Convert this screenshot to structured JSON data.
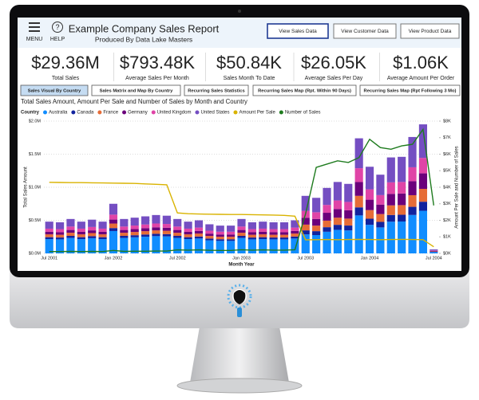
{
  "header": {
    "menu_label": "MENU",
    "help_icon": "?",
    "help_label": "HELP",
    "title": "Example Company Sales Report",
    "subtitle": "Produced By Data Lake Masters"
  },
  "nav_buttons": [
    "View Sales Data",
    "View Customer Data",
    "View Product Data"
  ],
  "kpis": [
    {
      "value": "$29.36M",
      "label": "Total Sales"
    },
    {
      "value": "$793.48K",
      "label": "Average Sales Per Month"
    },
    {
      "value": "$50.84K",
      "label": "Sales Month To Date"
    },
    {
      "value": "$26.05K",
      "label": "Average Sales Per Day"
    },
    {
      "value": "$1.06K",
      "label": "Average Amount Per Order"
    }
  ],
  "tabs": [
    "Sales Visual By Country",
    "Sales Matrix and Map By Country",
    "Recurring Sales Statistics",
    "Recurring Sales Map (Rpt. Within 90 Days)",
    "Recurring Sales Map (Rpt Following 3 Mo)"
  ],
  "chart_data": {
    "type": "bar",
    "title": "Total Sales Amount, Amount Per Sale and Number of Sales by Month and Country",
    "legend_title": "Country",
    "x_label": "Month Year",
    "y_label": "Total Sales Amount",
    "y2_label": "Amount Per Sale and Number of Sales",
    "grid": true,
    "categories": [
      "Jul 2001",
      null,
      null,
      null,
      null,
      null,
      "Jan 2002",
      null,
      null,
      null,
      null,
      null,
      "Jul 2002",
      null,
      null,
      null,
      null,
      null,
      "Jan 2003",
      null,
      null,
      null,
      null,
      null,
      "Jul 2003",
      null,
      null,
      null,
      null,
      null,
      "Jan 2004",
      null,
      null,
      null,
      null,
      null,
      "Jul 2004"
    ],
    "ylim": [
      0,
      2000000
    ],
    "yticks": [
      {
        "value": 0,
        "label": "$0.0M"
      },
      {
        "value": 500000,
        "label": "$0.5M"
      },
      {
        "value": 1000000,
        "label": "$1.0M"
      },
      {
        "value": 1500000,
        "label": "$1.5M"
      },
      {
        "value": 2000000,
        "label": "$2.0M"
      }
    ],
    "y2lim": [
      0,
      8000
    ],
    "y2ticks": [
      {
        "value": 0,
        "label": "$0K"
      },
      {
        "value": 1000,
        "label": "$1K"
      },
      {
        "value": 2000,
        "label": "$2K"
      },
      {
        "value": 3000,
        "label": "$3K"
      },
      {
        "value": 4000,
        "label": "$4K"
      },
      {
        "value": 5000,
        "label": "$5K"
      },
      {
        "value": 6000,
        "label": "$6K"
      },
      {
        "value": 7000,
        "label": "$7K"
      },
      {
        "value": 8000,
        "label": "$8K"
      }
    ],
    "series": [
      {
        "name": "Australia",
        "type": "bar",
        "color": "#118dff",
        "values": [
          216000,
          212000,
          234000,
          216000,
          230000,
          216000,
          338000,
          234000,
          243000,
          252000,
          261000,
          257000,
          234000,
          216000,
          225000,
          198000,
          189000,
          189000,
          234000,
          212000,
          216000,
          212000,
          212000,
          225000,
          287000,
          277000,
          327000,
          356000,
          347000,
          574000,
          432000,
          393000,
          479000,
          482000,
          581000,
          644000,
          20000
        ]
      },
      {
        "name": "Canada",
        "type": "bar",
        "color": "#12239e",
        "values": [
          29000,
          28000,
          31000,
          29000,
          31000,
          29000,
          45000,
          31000,
          32000,
          34000,
          35000,
          34000,
          31000,
          29000,
          30000,
          26000,
          25000,
          25000,
          31000,
          28000,
          29000,
          28000,
          28000,
          30000,
          61000,
          59000,
          69000,
          76000,
          74000,
          122000,
          92000,
          83000,
          102000,
          102000,
          123000,
          137000,
          4000
        ]
      },
      {
        "name": "France",
        "type": "bar",
        "color": "#e66c37",
        "values": [
          43000,
          42000,
          47000,
          43000,
          46000,
          43000,
          68000,
          47000,
          49000,
          50000,
          52000,
          51000,
          47000,
          43000,
          45000,
          40000,
          38000,
          38000,
          47000,
          42000,
          43000,
          42000,
          42000,
          45000,
          87000,
          84000,
          99000,
          108000,
          105000,
          174000,
          131000,
          119000,
          145000,
          146000,
          176000,
          195000,
          6000
        ]
      },
      {
        "name": "Germany",
        "type": "bar",
        "color": "#6b007b",
        "values": [
          38000,
          38000,
          42000,
          38000,
          41000,
          38000,
          60000,
          42000,
          43000,
          45000,
          46000,
          46000,
          42000,
          38000,
          40000,
          35000,
          34000,
          34000,
          42000,
          38000,
          38000,
          38000,
          38000,
          40000,
          104000,
          101000,
          119000,
          130000,
          126000,
          209000,
          157000,
          143000,
          174000,
          175000,
          211000,
          234000,
          7000
        ]
      },
      {
        "name": "United Kingdom",
        "type": "bar",
        "color": "#e044a7",
        "values": [
          48000,
          47000,
          52000,
          48000,
          51000,
          48000,
          75000,
          52000,
          54000,
          56000,
          58000,
          57000,
          52000,
          48000,
          50000,
          44000,
          42000,
          42000,
          52000,
          47000,
          48000,
          47000,
          47000,
          50000,
          104000,
          101000,
          119000,
          130000,
          126000,
          209000,
          157000,
          143000,
          174000,
          175000,
          211000,
          234000,
          7000
        ]
      },
      {
        "name": "United States",
        "type": "bar",
        "color": "#744ec2",
        "values": [
          106000,
          103000,
          114000,
          106000,
          111000,
          106000,
          164000,
          114000,
          119000,
          123000,
          128000,
          125000,
          114000,
          106000,
          110000,
          97000,
          92000,
          92000,
          114000,
          103000,
          106000,
          103000,
          103000,
          110000,
          227000,
          218000,
          257000,
          280000,
          273000,
          452000,
          341000,
          309000,
          377000,
          380000,
          458000,
          507000,
          16000
        ]
      },
      {
        "name": "Amount Per Sale",
        "type": "line",
        "axis": "y2",
        "color": "#d9b300",
        "values": [
          4300,
          4290,
          4280,
          4280,
          4270,
          4260,
          4250,
          4240,
          4230,
          4200,
          4180,
          4150,
          2450,
          2400,
          2380,
          2370,
          2360,
          2350,
          2350,
          2340,
          2330,
          2320,
          2300,
          2250,
          820,
          830,
          840,
          830,
          840,
          850,
          840,
          830,
          840,
          850,
          840,
          830,
          400
        ]
      },
      {
        "name": "Number of Sales",
        "type": "line",
        "axis": "y2",
        "color": "#1e7b1e",
        "values": [
          110,
          110,
          120,
          110,
          120,
          110,
          180,
          120,
          130,
          130,
          140,
          140,
          210,
          200,
          210,
          190,
          180,
          180,
          220,
          200,
          210,
          200,
          200,
          220,
          2400,
          5200,
          5400,
          5600,
          5500,
          5800,
          6900,
          6400,
          6300,
          6500,
          6600,
          7500,
          2900
        ]
      }
    ]
  }
}
